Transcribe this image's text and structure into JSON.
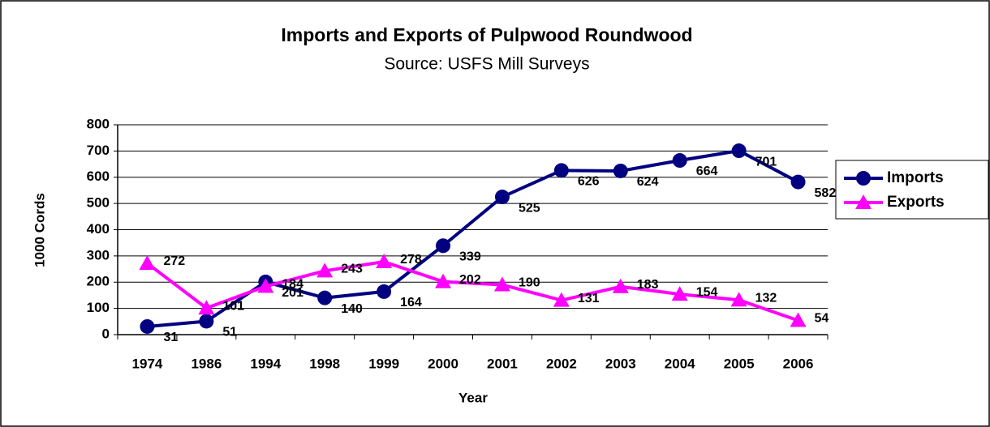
{
  "chart_data": {
    "type": "line",
    "title": "Imports and Exports of Pulpwood Roundwood",
    "subtitle": "Source: USFS Mill Surveys",
    "x_label": "Year",
    "y_label": "1000 Cords",
    "categories": [
      "1974",
      "1986",
      "1994",
      "1998",
      "1999",
      "2000",
      "2001",
      "2002",
      "2003",
      "2004",
      "2005",
      "2006"
    ],
    "series": [
      {
        "name": "Imports",
        "color": "#000080",
        "marker": "circle",
        "values": [
          31,
          51,
          201,
          140,
          164,
          339,
          525,
          626,
          624,
          664,
          701,
          582
        ]
      },
      {
        "name": "Exports",
        "color": "#ff00ff",
        "marker": "triangle",
        "values": [
          272,
          101,
          184,
          243,
          278,
          202,
          190,
          131,
          183,
          154,
          132,
          54
        ]
      }
    ],
    "ylim": [
      0,
      800
    ],
    "yticks": [
      0,
      100,
      200,
      300,
      400,
      500,
      600,
      700,
      800
    ],
    "grid": true,
    "legend": "right"
  }
}
